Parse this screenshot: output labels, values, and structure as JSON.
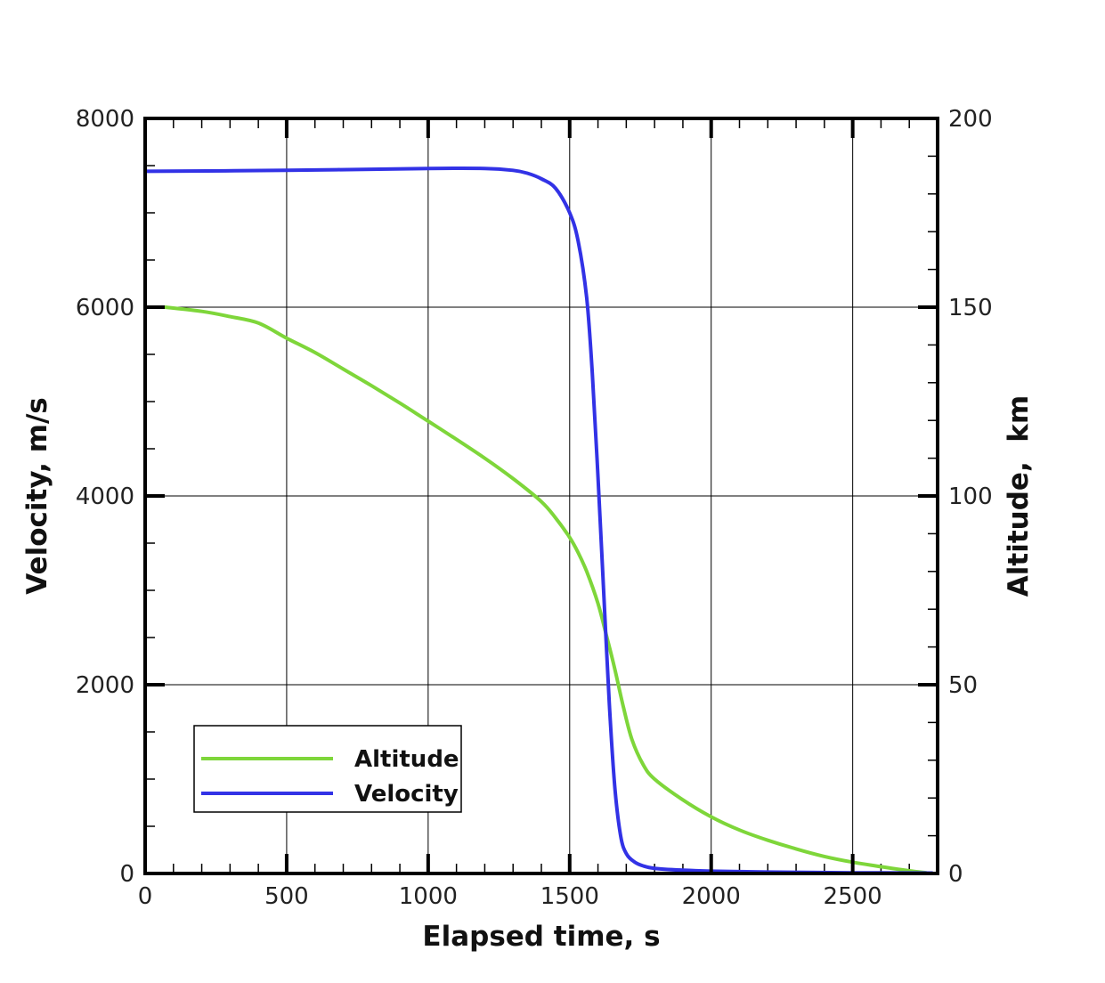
{
  "chart_data": {
    "type": "line",
    "xlabel": "Elapsed time, s",
    "ylabel": "Velocity, m/s",
    "y2label": "Altitude,  km",
    "xlim": [
      0,
      2800
    ],
    "ylim": [
      0,
      8000
    ],
    "y2lim": [
      0,
      200
    ],
    "xticks": [
      "0",
      "500",
      "1000",
      "1500",
      "2000",
      "2500"
    ],
    "yticks": [
      "0",
      "2000",
      "4000",
      "6000",
      "8000"
    ],
    "y2ticks": [
      "0",
      "50",
      "100",
      "150",
      "200"
    ],
    "grid": true,
    "legend_position": "bottom-left",
    "series": [
      {
        "name": "Altitude",
        "axis": "right",
        "color": "#7ed63a",
        "points": [
          [
            70,
            150
          ],
          [
            200,
            148.9
          ],
          [
            300,
            147.5
          ],
          [
            400,
            145.8
          ],
          [
            500,
            141.8
          ],
          [
            600,
            138
          ],
          [
            700,
            133.6
          ],
          [
            800,
            129.2
          ],
          [
            900,
            124.6
          ],
          [
            1000,
            119.8
          ],
          [
            1100,
            115
          ],
          [
            1200,
            110
          ],
          [
            1300,
            104.6
          ],
          [
            1400,
            98.5
          ],
          [
            1450,
            94.2
          ],
          [
            1500,
            89
          ],
          [
            1530,
            85
          ],
          [
            1560,
            80
          ],
          [
            1600,
            71.5
          ],
          [
            1630,
            63
          ],
          [
            1660,
            54
          ],
          [
            1690,
            44
          ],
          [
            1720,
            35.5
          ],
          [
            1760,
            28.8
          ],
          [
            1800,
            25
          ],
          [
            1900,
            19.5
          ],
          [
            2000,
            15
          ],
          [
            2100,
            11.5
          ],
          [
            2200,
            8.8
          ],
          [
            2300,
            6.5
          ],
          [
            2400,
            4.5
          ],
          [
            2500,
            3
          ],
          [
            2600,
            1.8
          ],
          [
            2700,
            0.7
          ],
          [
            2760,
            0.2
          ]
        ]
      },
      {
        "name": "Velocity",
        "axis": "left",
        "color": "#3232e6",
        "points": [
          [
            0,
            7440
          ],
          [
            500,
            7450
          ],
          [
            1000,
            7470
          ],
          [
            1200,
            7470
          ],
          [
            1300,
            7450
          ],
          [
            1350,
            7420
          ],
          [
            1400,
            7360
          ],
          [
            1450,
            7260
          ],
          [
            1500,
            7000
          ],
          [
            1530,
            6700
          ],
          [
            1560,
            6100
          ],
          [
            1580,
            5300
          ],
          [
            1600,
            4200
          ],
          [
            1620,
            3000
          ],
          [
            1640,
            1800
          ],
          [
            1660,
            900
          ],
          [
            1680,
            400
          ],
          [
            1700,
            210
          ],
          [
            1730,
            120
          ],
          [
            1760,
            80
          ],
          [
            1800,
            55
          ],
          [
            1900,
            35
          ],
          [
            2000,
            25
          ],
          [
            2200,
            15
          ],
          [
            2500,
            8
          ],
          [
            2780,
            5
          ]
        ]
      }
    ]
  }
}
